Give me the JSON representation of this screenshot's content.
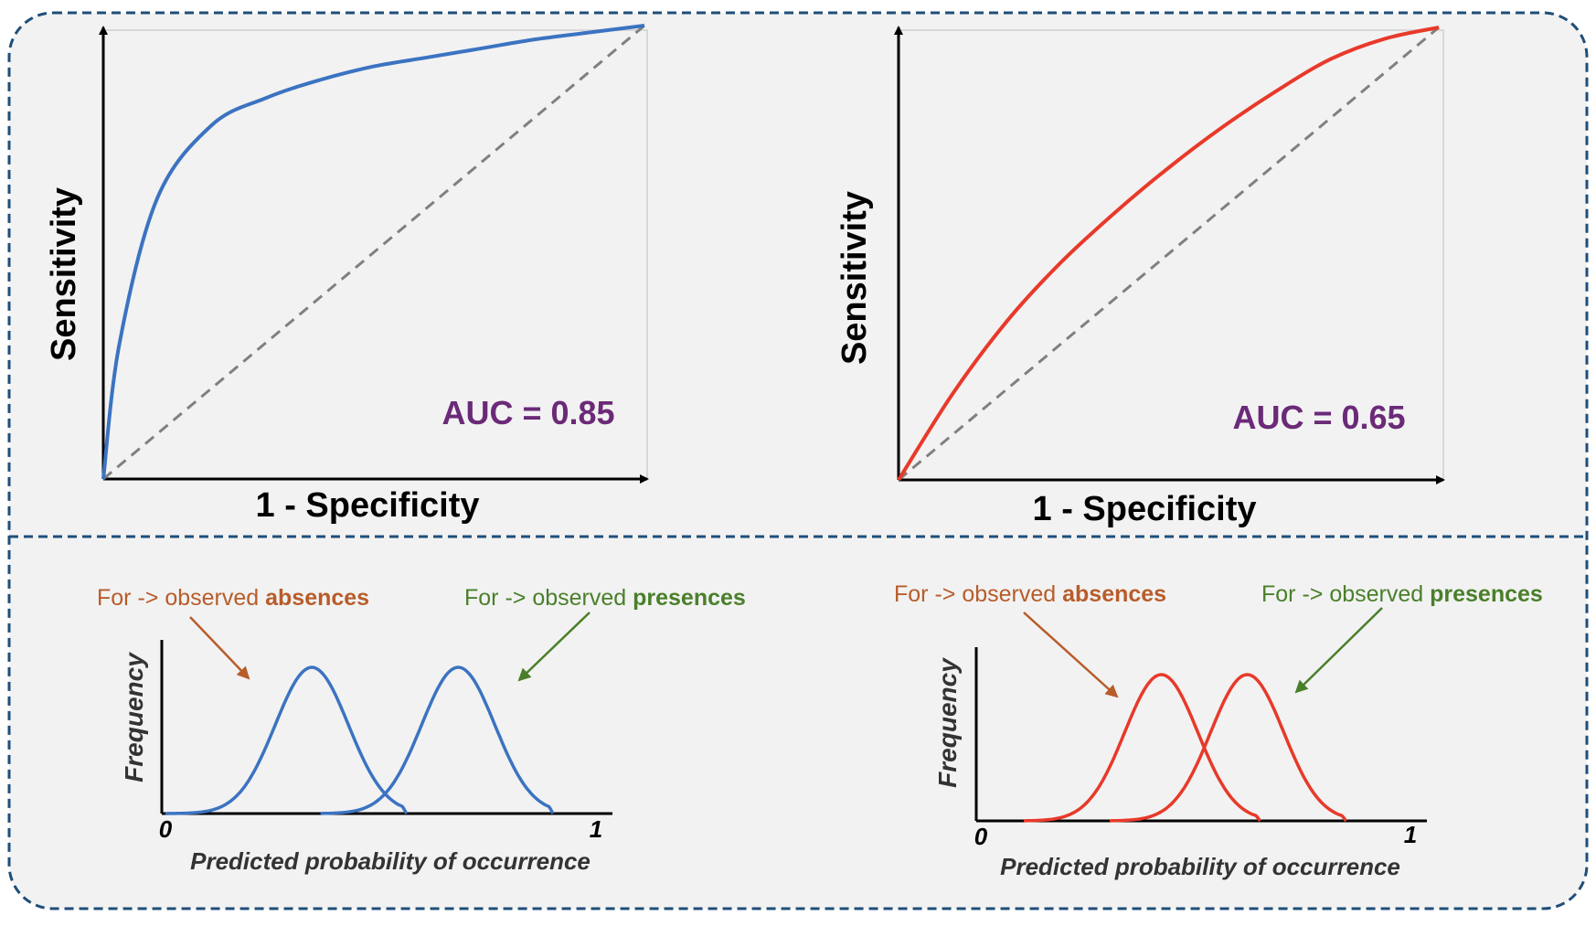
{
  "colors": {
    "background": "#f2f2f2",
    "border": "#1f4e79",
    "high_auc_curve": "#3b73c1",
    "low_auc_curve": "#e8392a",
    "auc_label": "#6b2a78",
    "diagonal": "#808080",
    "absences": "#b85c2a",
    "presences": "#4a7f2a"
  },
  "roc_left": {
    "ylabel": "Sensitivity",
    "xlabel": "1 - Specificity",
    "auc_label": "AUC = 0.85"
  },
  "roc_right": {
    "ylabel": "Sensitivity",
    "xlabel": "1 - Specificity",
    "auc_label": "AUC = 0.65"
  },
  "dist_left": {
    "ylabel": "Frequency",
    "xlabel": "Predicted probability of occurrence",
    "tick_start": "0",
    "tick_end": "1",
    "absences_prefix": "For -> observed ",
    "absences_bold": "absences",
    "presences_prefix": "For -> observed ",
    "presences_bold": "presences"
  },
  "dist_right": {
    "ylabel": "Frequency",
    "xlabel": "Predicted probability of occurrence",
    "tick_start": "0",
    "tick_end": "1",
    "absences_prefix": "For -> observed ",
    "absences_bold": "absences",
    "presences_prefix": "For -> observed ",
    "presences_bold": "presences"
  },
  "chart_data": [
    {
      "type": "line",
      "xlabel": "1 - Specificity",
      "ylabel": "Sensitivity",
      "xlim": [
        0,
        1
      ],
      "ylim": [
        0,
        1
      ],
      "annotation": "AUC = 0.85",
      "series": [
        {
          "x": [
            0,
            0.03,
            0.1,
            0.2,
            0.3,
            0.4,
            0.5,
            0.6,
            0.7,
            0.8,
            0.9,
            1.0
          ],
          "y": [
            0,
            0.3,
            0.62,
            0.78,
            0.84,
            0.88,
            0.91,
            0.93,
            0.95,
            0.97,
            0.985,
            1.0
          ]
        },
        {
          "x": [
            0,
            1
          ],
          "y": [
            0,
            1
          ]
        }
      ]
    },
    {
      "type": "line",
      "xlabel": "1 - Specificity",
      "ylabel": "Sensitivity",
      "xlim": [
        0,
        1
      ],
      "ylim": [
        0,
        1
      ],
      "annotation": "AUC = 0.65",
      "series": [
        {
          "x": [
            0,
            0.1,
            0.2,
            0.3,
            0.4,
            0.5,
            0.6,
            0.7,
            0.8,
            0.9,
            1.0
          ],
          "y": [
            0,
            0.19,
            0.35,
            0.48,
            0.59,
            0.69,
            0.78,
            0.86,
            0.93,
            0.975,
            1.0
          ]
        },
        {
          "x": [
            0,
            1
          ],
          "y": [
            0,
            1
          ]
        }
      ]
    },
    {
      "type": "line",
      "xlabel": "Predicted probability of occurrence",
      "ylabel": "Frequency",
      "xlim": [
        0,
        1
      ],
      "ylim": [
        0,
        1
      ],
      "series": [
        {
          "mean": 0.34,
          "sd": 0.085,
          "x": [
            0.0,
            0.1,
            0.2,
            0.3,
            0.34,
            0.4,
            0.5,
            0.56
          ],
          "y": [
            0.0,
            0.02,
            0.25,
            0.9,
            1.0,
            0.78,
            0.2,
            0.0
          ]
        },
        {
          "mean": 0.68,
          "sd": 0.085,
          "x": [
            0.36,
            0.45,
            0.55,
            0.65,
            0.68,
            0.75,
            0.85,
            0.9
          ],
          "y": [
            0.0,
            0.06,
            0.47,
            0.95,
            1.0,
            0.7,
            0.1,
            0.0
          ]
        }
      ]
    },
    {
      "type": "line",
      "xlabel": "Predicted probability of occurrence",
      "ylabel": "Frequency",
      "xlim": [
        0,
        1
      ],
      "ylim": [
        0,
        1
      ],
      "series": [
        {
          "mean": 0.42,
          "sd": 0.085,
          "x": [
            0.1,
            0.2,
            0.3,
            0.42,
            0.5,
            0.6,
            0.65
          ],
          "y": [
            0.0,
            0.04,
            0.37,
            1.0,
            0.64,
            0.1,
            0.0
          ]
        },
        {
          "mean": 0.62,
          "sd": 0.085,
          "x": [
            0.3,
            0.4,
            0.5,
            0.62,
            0.7,
            0.8,
            0.85
          ],
          "y": [
            0.0,
            0.04,
            0.37,
            1.0,
            0.64,
            0.1,
            0.0
          ]
        }
      ]
    }
  ]
}
